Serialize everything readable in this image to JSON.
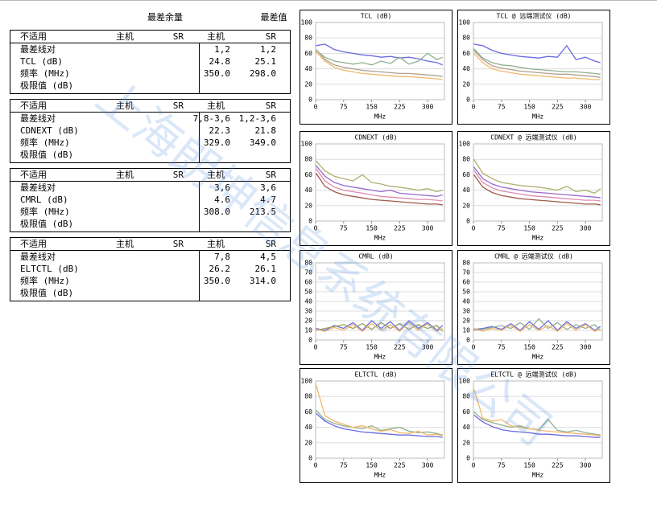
{
  "header": {
    "worst_margin": "最差余量",
    "worst_value": "最差值"
  },
  "watermark": "上海朗坤信息系统有限公司",
  "tables": [
    {
      "columns": [
        "不适用",
        "主机",
        "SR",
        "主机",
        "SR"
      ],
      "rows": [
        {
          "label": "最差线对",
          "main": "1,2",
          "sr": "1,2"
        },
        {
          "label": "TCL (dB)",
          "main": "24.8",
          "sr": "25.1"
        },
        {
          "label": "频率 (MHz)",
          "main": "350.0",
          "sr": "298.0"
        },
        {
          "label": "极限值 (dB)"
        }
      ]
    },
    {
      "columns": [
        "不适用",
        "主机",
        "SR",
        "主机",
        "SR"
      ],
      "rows": [
        {
          "label": "最差线对",
          "main": "7,8-3,6",
          "sr": "1,2-3,6"
        },
        {
          "label": "CDNEXT (dB)",
          "main": "22.3",
          "sr": "21.8"
        },
        {
          "label": "频率 (MHz)",
          "main": "329.0",
          "sr": "349.0"
        },
        {
          "label": "极限值 (dB)"
        }
      ]
    },
    {
      "columns": [
        "不适用",
        "主机",
        "SR",
        "主机",
        "SR"
      ],
      "rows": [
        {
          "label": "最差线对",
          "main": "3,6",
          "sr": "3,6"
        },
        {
          "label": "CMRL (dB)",
          "main": "4.6",
          "sr": "4.7"
        },
        {
          "label": "频率 (MHz)",
          "main": "308.0",
          "sr": "213.5"
        },
        {
          "label": "极限值 (dB)"
        }
      ]
    },
    {
      "columns": [
        "不适用",
        "主机",
        "SR",
        "主机",
        "SR"
      ],
      "rows": [
        {
          "label": "最差线对",
          "main": "7,8",
          "sr": "4,5"
        },
        {
          "label": "ELTCTL (dB)",
          "main": "26.2",
          "sr": "26.1"
        },
        {
          "label": "频率 (MHz)",
          "main": "350.0",
          "sr": "314.0"
        },
        {
          "label": "极限值 (dB)"
        }
      ]
    }
  ],
  "chart_data": [
    {
      "type": "line",
      "title": "TCL (dB)",
      "x_label": "MHz",
      "xlim": [
        0,
        345
      ],
      "xticks": [
        0,
        75,
        150,
        225,
        300
      ],
      "ylim": [
        0,
        100
      ],
      "yticks": [
        0,
        20,
        40,
        60,
        80,
        100
      ],
      "grid": true,
      "x": [
        1,
        25,
        50,
        75,
        100,
        125,
        150,
        175,
        200,
        225,
        250,
        275,
        300,
        325,
        340
      ],
      "series": [
        {
          "color": "#6a6ae0",
          "values": [
            70,
            72,
            65,
            62,
            60,
            58,
            57,
            55,
            56,
            54,
            55,
            53,
            50,
            48,
            45
          ]
        },
        {
          "color": "#8fb08f",
          "values": [
            64,
            55,
            50,
            48,
            46,
            48,
            45,
            50,
            47,
            55,
            46,
            50,
            60,
            52,
            55
          ]
        },
        {
          "color": "#f2b86a",
          "values": [
            62,
            50,
            42,
            38,
            36,
            34,
            33,
            32,
            31,
            30,
            30,
            29,
            28,
            27,
            26
          ]
        },
        {
          "color": "#b0a090",
          "values": [
            65,
            52,
            45,
            42,
            40,
            38,
            37,
            36,
            35,
            34,
            34,
            33,
            32,
            31,
            30
          ]
        }
      ]
    },
    {
      "type": "line",
      "title": "TCL @ 远端测试仪 (dB)",
      "x_label": "MHz",
      "xlim": [
        0,
        345
      ],
      "xticks": [
        0,
        75,
        150,
        225,
        300
      ],
      "ylim": [
        0,
        100
      ],
      "yticks": [
        0,
        20,
        40,
        60,
        80,
        100
      ],
      "grid": true,
      "x": [
        1,
        25,
        50,
        75,
        100,
        125,
        150,
        175,
        200,
        225,
        250,
        275,
        300,
        325,
        340
      ],
      "series": [
        {
          "color": "#6a6ae0",
          "values": [
            72,
            70,
            64,
            60,
            58,
            56,
            55,
            54,
            56,
            55,
            70,
            52,
            55,
            50,
            48
          ]
        },
        {
          "color": "#8fb08f",
          "values": [
            66,
            54,
            48,
            45,
            44,
            42,
            40,
            39,
            38,
            37,
            36,
            36,
            35,
            34,
            33
          ]
        },
        {
          "color": "#f2b86a",
          "values": [
            60,
            48,
            40,
            37,
            35,
            33,
            32,
            31,
            30,
            29,
            28,
            28,
            27,
            26,
            26
          ]
        },
        {
          "color": "#b0a090",
          "values": [
            64,
            52,
            44,
            41,
            39,
            37,
            36,
            35,
            34,
            33,
            33,
            32,
            31,
            30,
            29
          ]
        }
      ]
    },
    {
      "type": "line",
      "title": "CDNEXT (dB)",
      "x_label": "MHz",
      "xlim": [
        0,
        345
      ],
      "xticks": [
        0,
        75,
        150,
        225,
        300
      ],
      "ylim": [
        0,
        100
      ],
      "yticks": [
        0,
        20,
        40,
        60,
        80,
        100
      ],
      "grid": true,
      "x": [
        1,
        25,
        50,
        75,
        100,
        125,
        150,
        175,
        200,
        225,
        250,
        275,
        300,
        325,
        340
      ],
      "series": [
        {
          "color": "#b0b070",
          "values": [
            78,
            65,
            58,
            55,
            52,
            60,
            50,
            48,
            45,
            44,
            42,
            40,
            42,
            38,
            40
          ]
        },
        {
          "color": "#9a6ad0",
          "values": [
            72,
            58,
            50,
            46,
            44,
            42,
            40,
            38,
            40,
            36,
            35,
            34,
            33,
            32,
            34
          ]
        },
        {
          "color": "#e08ab0",
          "values": [
            68,
            52,
            44,
            40,
            38,
            36,
            34,
            32,
            31,
            30,
            29,
            28,
            28,
            27,
            26
          ]
        },
        {
          "color": "#a05a4a",
          "values": [
            62,
            45,
            38,
            34,
            32,
            30,
            28,
            27,
            26,
            25,
            24,
            23,
            22,
            22,
            21
          ]
        }
      ]
    },
    {
      "type": "line",
      "title": "CDNEXT @ 远端测试仪 (dB)",
      "x_label": "MHz",
      "xlim": [
        0,
        345
      ],
      "xticks": [
        0,
        75,
        150,
        225,
        300
      ],
      "ylim": [
        0,
        100
      ],
      "yticks": [
        0,
        20,
        40,
        60,
        80,
        100
      ],
      "grid": true,
      "x": [
        1,
        25,
        50,
        75,
        100,
        125,
        150,
        175,
        200,
        225,
        250,
        275,
        300,
        325,
        340
      ],
      "series": [
        {
          "color": "#b0b070",
          "values": [
            80,
            62,
            55,
            50,
            48,
            46,
            45,
            44,
            42,
            40,
            45,
            38,
            40,
            36,
            42
          ]
        },
        {
          "color": "#9a6ad0",
          "values": [
            70,
            55,
            48,
            44,
            42,
            40,
            38,
            37,
            36,
            35,
            34,
            33,
            32,
            31,
            30
          ]
        },
        {
          "color": "#e08ab0",
          "values": [
            66,
            50,
            43,
            39,
            37,
            35,
            33,
            32,
            31,
            30,
            29,
            28,
            27,
            27,
            26
          ]
        },
        {
          "color": "#a05a4a",
          "values": [
            60,
            44,
            37,
            33,
            31,
            29,
            28,
            27,
            26,
            25,
            24,
            23,
            22,
            22,
            21
          ]
        }
      ]
    },
    {
      "type": "line",
      "title": "CMRL (dB)",
      "x_label": "MHz",
      "xlim": [
        0,
        345
      ],
      "xticks": [
        0,
        75,
        150,
        225,
        300
      ],
      "ylim": [
        0,
        80
      ],
      "yticks": [
        0,
        10,
        20,
        30,
        40,
        50,
        60,
        70,
        80
      ],
      "grid": true,
      "x": [
        1,
        25,
        50,
        75,
        100,
        125,
        150,
        175,
        200,
        225,
        250,
        275,
        300,
        325,
        340
      ],
      "series": [
        {
          "color": "#6a6ae0",
          "values": [
            12,
            10,
            15,
            12,
            18,
            10,
            20,
            12,
            19,
            10,
            20,
            12,
            18,
            10,
            15
          ]
        },
        {
          "color": "#9aa060",
          "values": [
            10,
            12,
            14,
            16,
            12,
            17,
            11,
            18,
            12,
            17,
            11,
            16,
            12,
            15,
            9
          ]
        },
        {
          "color": "#f2b86a",
          "values": [
            11,
            9,
            13,
            10,
            16,
            9,
            17,
            10,
            16,
            9,
            18,
            10,
            17,
            9,
            12
          ]
        }
      ]
    },
    {
      "type": "line",
      "title": "CMRL @ 远端测试仪 (dB)",
      "x_label": "MHz",
      "xlim": [
        0,
        345
      ],
      "xticks": [
        0,
        75,
        150,
        225,
        300
      ],
      "ylim": [
        0,
        80
      ],
      "yticks": [
        0,
        10,
        20,
        30,
        40,
        50,
        60,
        70,
        80
      ],
      "grid": true,
      "x": [
        1,
        25,
        50,
        75,
        100,
        125,
        150,
        175,
        200,
        225,
        250,
        275,
        300,
        325,
        340
      ],
      "series": [
        {
          "color": "#6a6ae0",
          "values": [
            11,
            12,
            14,
            11,
            17,
            10,
            19,
            11,
            20,
            10,
            19,
            12,
            17,
            10,
            14
          ]
        },
        {
          "color": "#8fb08f",
          "values": [
            10,
            11,
            13,
            15,
            12,
            18,
            11,
            22,
            12,
            18,
            11,
            16,
            12,
            16,
            10
          ]
        },
        {
          "color": "#f2b86a",
          "values": [
            12,
            9,
            12,
            10,
            15,
            9,
            16,
            10,
            15,
            9,
            17,
            10,
            16,
            9,
            11
          ]
        }
      ]
    },
    {
      "type": "line",
      "title": "ELTCTL (dB)",
      "x_label": "MHz",
      "xlim": [
        0,
        345
      ],
      "xticks": [
        0,
        75,
        150,
        225,
        300
      ],
      "ylim": [
        0,
        100
      ],
      "yticks": [
        0,
        20,
        40,
        60,
        80,
        100
      ],
      "grid": true,
      "x": [
        1,
        25,
        50,
        75,
        100,
        125,
        150,
        175,
        200,
        225,
        250,
        275,
        300,
        325,
        340
      ],
      "series": [
        {
          "color": "#8fb08f",
          "values": [
            62,
            50,
            45,
            42,
            40,
            38,
            42,
            36,
            38,
            40,
            35,
            33,
            34,
            32,
            30
          ]
        },
        {
          "color": "#f2b86a",
          "values": [
            95,
            55,
            48,
            44,
            40,
            42,
            38,
            35,
            37,
            33,
            32,
            35,
            30,
            31,
            29
          ]
        },
        {
          "color": "#6a6ae0",
          "values": [
            58,
            48,
            42,
            38,
            36,
            34,
            33,
            32,
            31,
            30,
            30,
            29,
            28,
            28,
            27
          ]
        }
      ]
    },
    {
      "type": "line",
      "title": "ELTCTL @ 远端测试仪 (dB)",
      "x_label": "MHz",
      "xlim": [
        0,
        345
      ],
      "xticks": [
        0,
        75,
        150,
        225,
        300
      ],
      "ylim": [
        0,
        100
      ],
      "yticks": [
        0,
        20,
        40,
        60,
        80,
        100
      ],
      "grid": true,
      "x": [
        1,
        25,
        50,
        75,
        100,
        125,
        150,
        175,
        200,
        225,
        250,
        275,
        300,
        325,
        340
      ],
      "series": [
        {
          "color": "#8fb08f",
          "values": [
            60,
            50,
            46,
            43,
            40,
            42,
            38,
            37,
            50,
            36,
            34,
            36,
            33,
            31,
            30
          ]
        },
        {
          "color": "#f2b86a",
          "values": [
            90,
            52,
            48,
            50,
            42,
            40,
            38,
            36,
            35,
            34,
            33,
            32,
            31,
            30,
            29
          ]
        },
        {
          "color": "#6a6ae0",
          "values": [
            56,
            47,
            41,
            37,
            35,
            34,
            33,
            31,
            31,
            30,
            29,
            29,
            28,
            27,
            27
          ]
        }
      ]
    }
  ]
}
